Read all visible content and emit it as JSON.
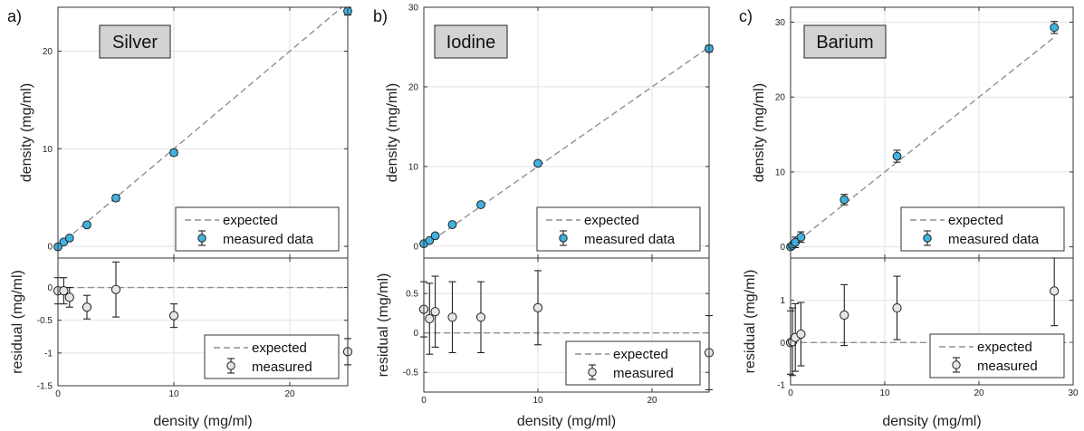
{
  "chart_data": [
    {
      "type": "scatter",
      "panel_letter": "a)",
      "title": "Silver",
      "xlabel": "density (mg/ml)",
      "main": {
        "ylabel": "density (mg/ml)",
        "xlim": [
          0,
          25
        ],
        "ylim": [
          -1.2,
          24.5
        ],
        "xticks": [
          0,
          10,
          20
        ],
        "yticks": [
          0,
          10,
          20
        ],
        "series": [
          {
            "name": "expected",
            "kind": "line",
            "x": [
              0,
              25
            ],
            "y": [
              0,
              25
            ]
          },
          {
            "name": "measured data",
            "kind": "points",
            "x": [
              0,
              0.5,
              1,
              2.5,
              5,
              10,
              25
            ],
            "y": [
              -0.05,
              0.45,
              0.85,
              2.2,
              4.95,
              9.6,
              24.1
            ],
            "err": [
              0.2,
              0.2,
              0.2,
              0.25,
              0.3,
              0.3,
              0.4
            ]
          }
        ],
        "legend_position": "bottom-right"
      },
      "residual": {
        "ylabel": "residual (mg/ml)",
        "xlim": [
          0,
          25
        ],
        "ylim": [
          -1.5,
          0.45
        ],
        "xticks": [
          0,
          10,
          20
        ],
        "yticks": [
          -1.5,
          -1,
          -0.5,
          0
        ],
        "ytick_labels": [
          "-1.5",
          "-1",
          "-0.5",
          "0"
        ],
        "series": [
          {
            "name": "expected",
            "kind": "line",
            "x": [
              0,
              25
            ],
            "y": [
              0,
              0
            ]
          },
          {
            "name": "measured",
            "kind": "points",
            "x": [
              0,
              0.5,
              1,
              2.5,
              5,
              10,
              25
            ],
            "y": [
              -0.05,
              -0.05,
              -0.15,
              -0.3,
              -0.03,
              -0.43,
              -0.98
            ],
            "err": [
              0.2,
              0.2,
              0.15,
              0.18,
              0.42,
              0.18,
              0.2
            ]
          }
        ],
        "legend_position": "bottom-right"
      }
    },
    {
      "type": "scatter",
      "panel_letter": "b)",
      "title": "Iodine",
      "xlabel": "density (mg/ml)",
      "main": {
        "ylabel": "density (mg/ml)",
        "xlim": [
          0,
          25
        ],
        "ylim": [
          -1.5,
          30
        ],
        "xticks": [
          0,
          10,
          20
        ],
        "yticks": [
          0,
          10,
          20,
          30
        ],
        "series": [
          {
            "name": "expected",
            "kind": "line",
            "x": [
              0,
              25
            ],
            "y": [
              0,
              25
            ]
          },
          {
            "name": "measured data",
            "kind": "points",
            "x": [
              0,
              0.5,
              1,
              2.5,
              5,
              10,
              25
            ],
            "y": [
              0.3,
              0.7,
              1.3,
              2.7,
              5.2,
              10.4,
              24.8
            ],
            "err": [
              0.2,
              0.2,
              0.2,
              0.25,
              0.3,
              0.3,
              0.4
            ]
          }
        ],
        "legend_position": "bottom-right"
      },
      "residual": {
        "ylabel": "residual (mg/ml)",
        "xlim": [
          0,
          25
        ],
        "ylim": [
          -0.75,
          0.95
        ],
        "xticks": [
          0,
          10,
          20
        ],
        "yticks": [
          -0.5,
          0,
          0.5
        ],
        "ytick_labels": [
          "-0.5",
          "0",
          "0.5"
        ],
        "series": [
          {
            "name": "expected",
            "kind": "line",
            "x": [
              0,
              25
            ],
            "y": [
              0,
              0
            ]
          },
          {
            "name": "measured",
            "kind": "points",
            "x": [
              0,
              0.5,
              1,
              2.5,
              5,
              10,
              25
            ],
            "y": [
              0.3,
              0.18,
              0.27,
              0.2,
              0.2,
              0.32,
              -0.25
            ],
            "err": [
              0.35,
              0.45,
              0.45,
              0.45,
              0.45,
              0.47,
              0.47
            ]
          }
        ],
        "legend_position": "bottom-right"
      }
    },
    {
      "type": "scatter",
      "panel_letter": "c)",
      "title": "Barium",
      "xlabel": "density (mg/ml)",
      "main": {
        "ylabel": "density (mg/ml)",
        "xlim": [
          0,
          30
        ],
        "ylim": [
          -1.5,
          32
        ],
        "xticks": [
          0,
          10,
          20,
          30
        ],
        "yticks": [
          0,
          10,
          20,
          30
        ],
        "series": [
          {
            "name": "expected",
            "kind": "line",
            "x": [
              0,
              28
            ],
            "y": [
              0,
              28
            ]
          },
          {
            "name": "measured data",
            "kind": "points",
            "x": [
              0,
              0.2,
              0.5,
              1.1,
              5.7,
              11.3,
              28
            ],
            "y": [
              0,
              0.2,
              0.6,
              1.3,
              6.3,
              12.1,
              29.3
            ],
            "err": [
              0.3,
              0.3,
              0.7,
              0.7,
              0.7,
              0.8,
              0.8
            ]
          }
        ],
        "legend_position": "bottom-right"
      },
      "residual": {
        "ylabel": "residual (mg/ml)",
        "xlim": [
          0,
          30
        ],
        "ylim": [
          -1,
          2
        ],
        "xticks": [
          0,
          10,
          20,
          30
        ],
        "yticks": [
          -1,
          0,
          1
        ],
        "ytick_labels": [
          "-1",
          "0",
          "1"
        ],
        "series": [
          {
            "name": "expected",
            "kind": "line",
            "x": [
              0,
              30
            ],
            "y": [
              0,
              0
            ]
          },
          {
            "name": "measured",
            "kind": "points",
            "x": [
              0,
              0.2,
              0.5,
              1.1,
              5.7,
              11.3,
              28
            ],
            "y": [
              0,
              0.02,
              0.12,
              0.2,
              0.65,
              0.82,
              1.22
            ],
            "err": [
              0.75,
              0.8,
              0.8,
              0.75,
              0.72,
              0.75,
              0.82
            ]
          }
        ],
        "legend_position": "bottom-right"
      }
    }
  ],
  "colors": {
    "marker_fill": "#3fb2e0",
    "residual_marker_fill": "#e6e6e6",
    "title_box": "#d3d3d3",
    "expected_line": "#909090",
    "grid": "#e2e2e2"
  }
}
